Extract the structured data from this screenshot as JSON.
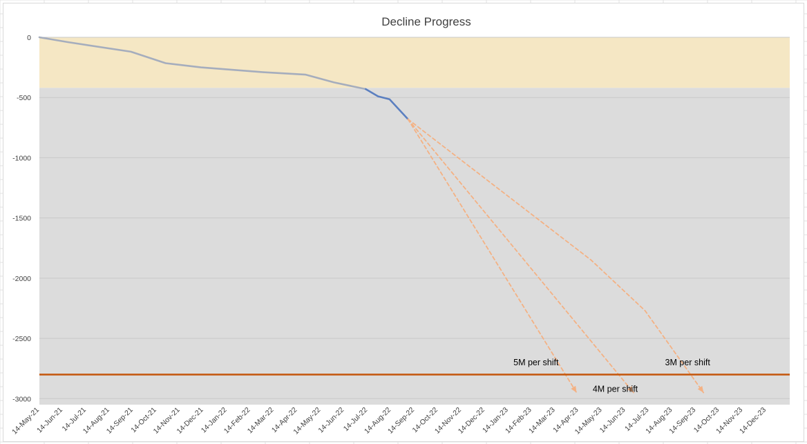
{
  "chart_data": {
    "type": "line",
    "title": "Decline Progress",
    "xlabel": "",
    "ylabel": "",
    "ylim": [
      -3050,
      0
    ],
    "yticks": [
      0,
      -500,
      -1000,
      -1500,
      -2000,
      -2500,
      -3000
    ],
    "xlim": [
      "2021-05-14",
      "2024-01-14"
    ],
    "x_tick_labels": [
      "14-May-21",
      "14-Jun-21",
      "14-Jul-21",
      "14-Aug-21",
      "14-Sep-21",
      "14-Oct-21",
      "14-Nov-21",
      "14-Dec-21",
      "14-Jan-22",
      "14-Feb-22",
      "14-Mar-22",
      "14-Apr-22",
      "14-May-22",
      "14-Jun-22",
      "14-Jul-22",
      "14-Aug-22",
      "14-Sep-22",
      "14-Oct-22",
      "14-Nov-22",
      "14-Dec-22",
      "14-Jan-23",
      "14-Feb-23",
      "14-Mar-23",
      "14-Apr-23",
      "14-May-23",
      "14-Jun-23",
      "14-Jul-23",
      "14-Aug-23",
      "14-Sep-23",
      "14-Oct-23",
      "14-Nov-23",
      "14-Dec-23"
    ],
    "bands": [
      {
        "y_from": 0,
        "y_to": -420,
        "fill": "#f5e7c4"
      },
      {
        "y_from": -420,
        "y_to": -3050,
        "fill": "#dcdcdc"
      }
    ],
    "series": [
      {
        "style": "solid",
        "color": "#a5adbd",
        "points": [
          {
            "x": "2021-05-14",
            "y": 0
          },
          {
            "x": "2021-06-20",
            "y": -40
          },
          {
            "x": "2021-09-10",
            "y": -120
          },
          {
            "x": "2021-10-25",
            "y": -215
          },
          {
            "x": "2021-12-10",
            "y": -250
          },
          {
            "x": "2022-03-01",
            "y": -290
          },
          {
            "x": "2022-04-25",
            "y": -310
          },
          {
            "x": "2022-06-01",
            "y": -375
          },
          {
            "x": "2022-07-12",
            "y": -430
          }
        ]
      },
      {
        "style": "solid",
        "color": "#5b7fc0",
        "points": [
          {
            "x": "2022-07-12",
            "y": -430
          },
          {
            "x": "2022-07-28",
            "y": -490
          },
          {
            "x": "2022-08-12",
            "y": -515
          },
          {
            "x": "2022-09-05",
            "y": -680
          }
        ]
      },
      {
        "style": "dashed",
        "color": "#f4b183",
        "arrow": true,
        "points": [
          {
            "x": "2022-09-05",
            "y": -680
          },
          {
            "x": "2023-04-12",
            "y": -2950
          }
        ]
      },
      {
        "style": "dashed",
        "color": "#f4b183",
        "arrow": true,
        "points": [
          {
            "x": "2022-09-05",
            "y": -680
          },
          {
            "x": "2023-06-25",
            "y": -2950
          }
        ]
      },
      {
        "style": "dashed",
        "color": "#f4b183",
        "arrow": true,
        "points": [
          {
            "x": "2022-09-05",
            "y": -680
          },
          {
            "x": "2023-05-01",
            "y": -1850
          },
          {
            "x": "2023-07-10",
            "y": -2270
          },
          {
            "x": "2023-09-24",
            "y": -2950
          }
        ]
      }
    ],
    "reference_line": {
      "y": -2800,
      "color": "#c55a11"
    },
    "annotations": [
      {
        "text": "5M per shift",
        "x": "2023-01-20",
        "y": -2700
      },
      {
        "text": "4M per shift",
        "x": "2023-05-03",
        "y": -2920
      },
      {
        "text": "3M per shift",
        "x": "2023-08-05",
        "y": -2700
      }
    ],
    "grid": true,
    "legend": "none"
  }
}
